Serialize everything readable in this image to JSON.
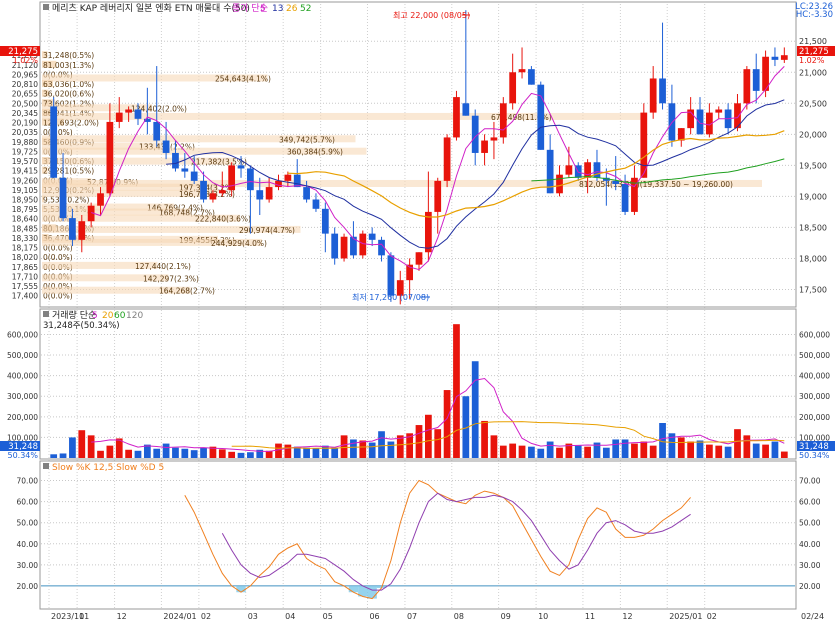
{
  "header": {
    "title": "메리츠 KAP 레버리지 일본 엔화 ETN 매물대 수(50)",
    "ma_label": "종가 단순",
    "ma_periods": [
      "5",
      "13",
      "26",
      "52"
    ],
    "lc_label": "LC:23.26",
    "hc_label": "HC:-3.30",
    "last_price_tag": "21,275",
    "last_pct_tag": "1.02%"
  },
  "volume_header": {
    "title": "거래량 단순",
    "periods": [
      "5",
      "20",
      "60",
      "120"
    ],
    "value_text": "31,248주(50.34%)",
    "last_tag": "31,248",
    "last_pct_tag": "50.34%"
  },
  "stoch_header": {
    "title": "Slow %K 12,5  Slow %D 5"
  },
  "annotations": {
    "high": "최고 22,000 (08/05)",
    "low": "최저 17,260 (07/08)"
  },
  "x_axis_labels": [
    "2023/10",
    "11",
    "12",
    "2024/01",
    "02",
    "03",
    "04",
    "05",
    "06",
    "07",
    "08",
    "09",
    "10",
    "11",
    "12",
    "2025/01",
    "02",
    "02/24"
  ],
  "colors": {
    "up": "#e8140c",
    "down": "#1c5fd6",
    "ma5": "#d020c8",
    "ma13": "#2030a0",
    "ma26": "#e8a000",
    "ma52": "#20a020",
    "vol_ma5": "#d020c8",
    "vol_ma20": "#e8a000",
    "slowk": "#f08020",
    "slowd": "#9040b0"
  },
  "chart_data": [
    {
      "type": "candlestick",
      "title": "메리츠 KAP 레버리지 일본 엔화 ETN 매물대 수(50)",
      "y_ticks": [
        "21,500",
        "21,000",
        "20,500",
        "20,000",
        "19,500",
        "19,000",
        "18,500",
        "18,000",
        "17,500"
      ],
      "ylim": [
        17250,
        22100
      ],
      "candles": [
        {
          "o": 20450,
          "h": 20600,
          "l": 19300,
          "c": 19300
        },
        {
          "o": 19300,
          "h": 19700,
          "l": 18600,
          "c": 18650
        },
        {
          "o": 18650,
          "h": 18800,
          "l": 18200,
          "c": 18300
        },
        {
          "o": 18300,
          "h": 18700,
          "l": 18100,
          "c": 18600
        },
        {
          "o": 18600,
          "h": 18900,
          "l": 18500,
          "c": 18850
        },
        {
          "o": 18850,
          "h": 19150,
          "l": 18700,
          "c": 19050
        },
        {
          "o": 19050,
          "h": 20500,
          "l": 19000,
          "c": 20200
        },
        {
          "o": 20200,
          "h": 20600,
          "l": 20100,
          "c": 20350
        },
        {
          "o": 20350,
          "h": 20450,
          "l": 20200,
          "c": 20400
        },
        {
          "o": 20400,
          "h": 20500,
          "l": 20150,
          "c": 20250
        },
        {
          "o": 20250,
          "h": 20750,
          "l": 20000,
          "c": 20200
        },
        {
          "o": 20200,
          "h": 21100,
          "l": 19800,
          "c": 19900
        },
        {
          "o": 19900,
          "h": 20200,
          "l": 19600,
          "c": 19700
        },
        {
          "o": 19700,
          "h": 19900,
          "l": 19400,
          "c": 19450
        },
        {
          "o": 19450,
          "h": 19700,
          "l": 19300,
          "c": 19400
        },
        {
          "o": 19400,
          "h": 19650,
          "l": 19200,
          "c": 19250
        },
        {
          "o": 19250,
          "h": 19400,
          "l": 18900,
          "c": 18950
        },
        {
          "o": 18950,
          "h": 19100,
          "l": 18900,
          "c": 19050
        },
        {
          "o": 19050,
          "h": 19400,
          "l": 19000,
          "c": 19100
        },
        {
          "o": 19100,
          "h": 19550,
          "l": 19000,
          "c": 19500
        },
        {
          "o": 19500,
          "h": 19650,
          "l": 19300,
          "c": 19450
        },
        {
          "o": 19450,
          "h": 19500,
          "l": 18400,
          "c": 19100
        },
        {
          "o": 19100,
          "h": 19300,
          "l": 18700,
          "c": 18950
        },
        {
          "o": 18950,
          "h": 19300,
          "l": 18900,
          "c": 19150
        },
        {
          "o": 19150,
          "h": 19350,
          "l": 19100,
          "c": 19250
        },
        {
          "o": 19250,
          "h": 19400,
          "l": 19150,
          "c": 19350
        },
        {
          "o": 19350,
          "h": 19600,
          "l": 19150,
          "c": 19150
        },
        {
          "o": 19150,
          "h": 19250,
          "l": 18900,
          "c": 18950
        },
        {
          "o": 18950,
          "h": 19050,
          "l": 18750,
          "c": 18800
        },
        {
          "o": 18800,
          "h": 18900,
          "l": 18100,
          "c": 18400
        },
        {
          "o": 18400,
          "h": 18500,
          "l": 17900,
          "c": 18000
        },
        {
          "o": 18000,
          "h": 18400,
          "l": 17950,
          "c": 18350
        },
        {
          "o": 18350,
          "h": 18600,
          "l": 18000,
          "c": 18050
        },
        {
          "o": 18050,
          "h": 18450,
          "l": 18000,
          "c": 18400
        },
        {
          "o": 18400,
          "h": 18500,
          "l": 18200,
          "c": 18300
        },
        {
          "o": 18300,
          "h": 18350,
          "l": 17950,
          "c": 18050
        },
        {
          "o": 18050,
          "h": 18100,
          "l": 17300,
          "c": 17400
        },
        {
          "o": 17400,
          "h": 17800,
          "l": 17260,
          "c": 17650
        },
        {
          "o": 17650,
          "h": 18000,
          "l": 17350,
          "c": 17900
        },
        {
          "o": 17900,
          "h": 18100,
          "l": 17800,
          "c": 18100
        },
        {
          "o": 18100,
          "h": 19400,
          "l": 17950,
          "c": 18750
        },
        {
          "o": 18750,
          "h": 19300,
          "l": 18400,
          "c": 19250
        },
        {
          "o": 19250,
          "h": 20000,
          "l": 19150,
          "c": 19950
        },
        {
          "o": 19950,
          "h": 20700,
          "l": 19900,
          "c": 20600
        },
        {
          "o": 20500,
          "h": 22000,
          "l": 20300,
          "c": 20300
        },
        {
          "o": 20300,
          "h": 20400,
          "l": 19500,
          "c": 19700
        },
        {
          "o": 19700,
          "h": 20000,
          "l": 19500,
          "c": 19900
        },
        {
          "o": 19900,
          "h": 20200,
          "l": 19600,
          "c": 19950
        },
        {
          "o": 19950,
          "h": 20600,
          "l": 19850,
          "c": 20500
        },
        {
          "o": 20500,
          "h": 21300,
          "l": 20400,
          "c": 21000
        },
        {
          "o": 21000,
          "h": 21400,
          "l": 20900,
          "c": 21050
        },
        {
          "o": 21050,
          "h": 21100,
          "l": 20800,
          "c": 20800
        },
        {
          "o": 20800,
          "h": 20850,
          "l": 19750,
          "c": 19750
        },
        {
          "o": 19750,
          "h": 20000,
          "l": 19050,
          "c": 19050
        },
        {
          "o": 19050,
          "h": 19500,
          "l": 19000,
          "c": 19350
        },
        {
          "o": 19350,
          "h": 19800,
          "l": 19300,
          "c": 19500
        },
        {
          "o": 19500,
          "h": 19550,
          "l": 19250,
          "c": 19300
        },
        {
          "o": 19300,
          "h": 19600,
          "l": 19050,
          "c": 19550
        },
        {
          "o": 19550,
          "h": 19750,
          "l": 19250,
          "c": 19300
        },
        {
          "o": 19300,
          "h": 19450,
          "l": 18850,
          "c": 19250
        },
        {
          "o": 19250,
          "h": 19650,
          "l": 19100,
          "c": 19200
        },
        {
          "o": 19200,
          "h": 19350,
          "l": 18700,
          "c": 18750
        },
        {
          "o": 18750,
          "h": 19500,
          "l": 18700,
          "c": 19300
        },
        {
          "o": 19300,
          "h": 20500,
          "l": 19300,
          "c": 20350
        },
        {
          "o": 20350,
          "h": 21100,
          "l": 20250,
          "c": 20900
        },
        {
          "o": 20900,
          "h": 21800,
          "l": 20400,
          "c": 20500
        },
        {
          "o": 20500,
          "h": 20800,
          "l": 19800,
          "c": 19900
        },
        {
          "o": 19900,
          "h": 20100,
          "l": 19800,
          "c": 20100
        },
        {
          "o": 20100,
          "h": 20600,
          "l": 20000,
          "c": 20400
        },
        {
          "o": 20400,
          "h": 20600,
          "l": 20000,
          "c": 20000
        },
        {
          "o": 20000,
          "h": 20500,
          "l": 19950,
          "c": 20350
        },
        {
          "o": 20350,
          "h": 20450,
          "l": 20250,
          "c": 20400
        },
        {
          "o": 20400,
          "h": 20500,
          "l": 20000,
          "c": 20100
        },
        {
          "o": 20100,
          "h": 20650,
          "l": 20050,
          "c": 20500
        },
        {
          "o": 20500,
          "h": 21100,
          "l": 20400,
          "c": 21050
        },
        {
          "o": 21050,
          "h": 21300,
          "l": 20500,
          "c": 20700
        },
        {
          "o": 20700,
          "h": 21350,
          "l": 20600,
          "c": 21250
        },
        {
          "o": 21250,
          "h": 21400,
          "l": 21100,
          "c": 21200
        },
        {
          "o": 21200,
          "h": 21400,
          "l": 21150,
          "c": 21275
        }
      ],
      "volume_profile": [
        {
          "price": "21,275",
          "label": "31,248(0.5%)"
        },
        {
          "price": "21,120",
          "label": "81,003(1.3%)"
        },
        {
          "price": "20,965",
          "label": "0(0.0%)"
        },
        {
          "price": "20,810",
          "label": "63,036(1.0%)"
        },
        {
          "price": "20,655",
          "label": "36,020(0.6%)"
        },
        {
          "price": "20,500",
          "label": "73,602(1.2%)"
        },
        {
          "price": "20,345",
          "label": "86,941(1.4%)"
        },
        {
          "price": "20,190",
          "label": "125,693(2.0%)"
        },
        {
          "price": "20,035",
          "label": "0(0.0%)"
        },
        {
          "price": "19,880",
          "label": "58,460(0.9%)"
        },
        {
          "price": "19,725",
          "label": "0(0.0%)"
        },
        {
          "price": "19,570",
          "label": "37,150(0.6%)"
        },
        {
          "price": "19,415",
          "label": "29,281(0.5%)"
        },
        {
          "price": "19,260",
          "label": "0(0.0%)"
        },
        {
          "price": "19,105",
          "label": "12,900(0.2%)"
        },
        {
          "price": "18,950",
          "label": "9,538(0.2%)"
        },
        {
          "price": "18,795",
          "label": "5,530(0.1%)"
        },
        {
          "price": "18,640",
          "label": "0(0.0%)"
        },
        {
          "price": "18,485",
          "label": "80,186(1.3%)"
        },
        {
          "price": "18,330",
          "label": "36,470(0.6%)"
        },
        {
          "price": "18,175",
          "label": "0(0.0%)"
        },
        {
          "price": "18,020",
          "label": "0(0.0%)"
        },
        {
          "price": "17,865",
          "label": "0(0.0%)"
        },
        {
          "price": "17,710",
          "label": "0(0.0%)"
        },
        {
          "price": "17,555",
          "label": "0(0.0%)"
        },
        {
          "price": "17,400",
          "label": "0(0.0%)"
        }
      ],
      "profile_extra_labels": [
        {
          "price": 20900,
          "label": "254,643(4.1%)"
        },
        {
          "price": 20420,
          "label": "124,402(2.0%)"
        },
        {
          "price": 20280,
          "label": "677,498(11.0%)"
        },
        {
          "price": 19920,
          "label": "349,742(5.7%)"
        },
        {
          "price": 19800,
          "label": "133,431(2.2%)"
        },
        {
          "price": 19720,
          "label": "360,384(5.9%)"
        },
        {
          "price": 19560,
          "label": "217,382(3.5%)"
        },
        {
          "price": 19230,
          "label": "52,874(0.9%)"
        },
        {
          "price": 19200,
          "label": "812,054(13.2%)(19,337.50 ~ 19,260.00)"
        },
        {
          "price": 19140,
          "label": "197,364(3.2%)"
        },
        {
          "price": 19040,
          "label": "196,783(3.2%)"
        },
        {
          "price": 18820,
          "label": "146,769(2.4%)"
        },
        {
          "price": 18740,
          "label": "168,748(2.7%)"
        },
        {
          "price": 18640,
          "label": "222,840(3.6%)"
        },
        {
          "price": 18460,
          "label": "290,974(4.7%)"
        },
        {
          "price": 18300,
          "label": "199,455(3.2%)"
        },
        {
          "price": 18250,
          "label": "244,929(4.0%)"
        },
        {
          "price": 17880,
          "label": "127,440(2.1%)"
        },
        {
          "price": 17680,
          "label": "142,297(2.3%)"
        },
        {
          "price": 17480,
          "label": "164,268(2.7%)"
        }
      ]
    },
    {
      "type": "bar",
      "title": "거래량 단순",
      "y_ticks": [
        "600,000",
        "500,000",
        "400,000",
        "300,000",
        "200,000",
        "100,000"
      ],
      "ylim": [
        0,
        680000
      ],
      "values": [
        18000,
        22000,
        100000,
        135000,
        110000,
        35000,
        60000,
        95000,
        40000,
        35000,
        65000,
        45000,
        70000,
        50000,
        45000,
        38000,
        50000,
        55000,
        42000,
        30000,
        25000,
        28000,
        40000,
        35000,
        70000,
        65000,
        55000,
        50000,
        48000,
        60000,
        50000,
        110000,
        90000,
        85000,
        75000,
        130000,
        80000,
        110000,
        120000,
        160000,
        210000,
        140000,
        330000,
        650000,
        300000,
        470000,
        180000,
        110000,
        60000,
        70000,
        60000,
        55000,
        45000,
        80000,
        50000,
        70000,
        60000,
        55000,
        75000,
        50000,
        90000,
        90000,
        70000,
        80000,
        60000,
        170000,
        120000,
        100000,
        80000,
        85000,
        65000,
        60000,
        55000,
        140000,
        110000,
        70000,
        65000,
        80000,
        31248
      ]
    },
    {
      "type": "line",
      "title": "Slow %K 12,5  Slow %D 5",
      "y_ticks": [
        "70.00",
        "60.00",
        "50.00",
        "40.00",
        "30.00",
        "20.00"
      ],
      "ylim": [
        10,
        75
      ],
      "x_start_index": 14,
      "series": [
        {
          "name": "Slow %K",
          "values": [
            63,
            55,
            45,
            35,
            26,
            20,
            17,
            20,
            25,
            29,
            35,
            38,
            40,
            33,
            30,
            28,
            22,
            20,
            17,
            15,
            14,
            19,
            32,
            50,
            64,
            70,
            68,
            64,
            62,
            60,
            59,
            63,
            65,
            64,
            62,
            58,
            50,
            42,
            34,
            27,
            25,
            30,
            42,
            52,
            57,
            55,
            47,
            43,
            43,
            44,
            47,
            51,
            54,
            57,
            62
          ]
        },
        {
          "name": "Slow %D",
          "values": [
            null,
            null,
            null,
            null,
            45,
            37,
            30,
            26,
            24,
            25,
            28,
            31,
            35,
            35,
            34,
            33,
            30,
            27,
            23,
            20,
            18,
            18,
            21,
            28,
            38,
            50,
            60,
            64,
            61,
            60,
            61,
            62,
            62,
            63,
            62,
            60,
            56,
            51,
            44,
            37,
            32,
            28,
            30,
            37,
            45,
            50,
            51,
            49,
            46,
            45,
            45,
            46,
            48,
            51,
            54
          ]
        }
      ]
    }
  ]
}
